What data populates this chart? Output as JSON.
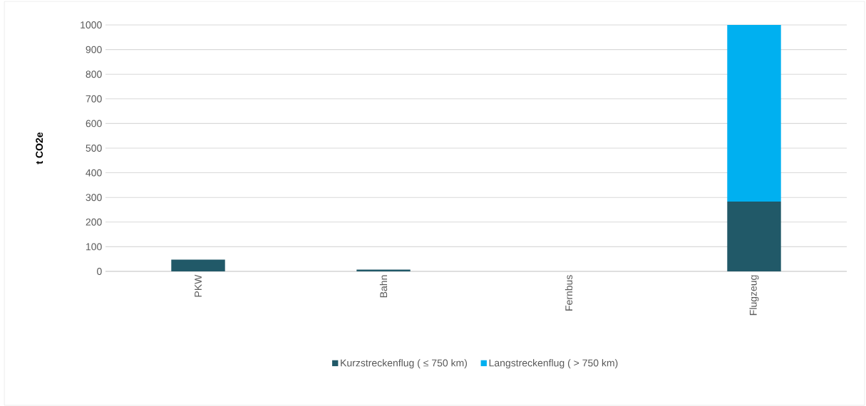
{
  "chart_data": {
    "type": "bar",
    "stacked": true,
    "ylabel": "t CO2e",
    "categories": [
      "PKW",
      "Bahn",
      "Fernbus",
      "Flugzeug"
    ],
    "series": [
      {
        "name": "Kurzstreckenflug ( ≤ 750 km)",
        "color": "#215968",
        "values": [
          48,
          7,
          0,
          283
        ]
      },
      {
        "name": "Langstreckenflug ( > 750 km)",
        "color": "#00b0f0",
        "values": [
          0,
          0,
          0,
          717
        ]
      }
    ],
    "ylim": [
      0,
      1000
    ],
    "yticks": [
      0,
      100,
      200,
      300,
      400,
      500,
      600,
      700,
      800,
      900,
      1000
    ],
    "grid": "y",
    "legend": "bottom"
  }
}
